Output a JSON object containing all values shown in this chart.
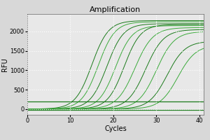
{
  "title": "Amplification",
  "xlabel": "Cycles",
  "ylabel": "RFU",
  "xlim": [
    0,
    41
  ],
  "ylim": [
    -150,
    2450
  ],
  "xticks": [
    0,
    10,
    20,
    30,
    40
  ],
  "yticks": [
    0,
    500,
    1000,
    1500,
    2000
  ],
  "background_color": "#d8d8d8",
  "plot_bg_color": "#e8e8e8",
  "grid_color": "#ffffff",
  "sigmoid_midpoints": [
    15.0,
    16.5,
    18.5,
    20.5,
    22.5,
    25.0,
    27.5,
    30.0,
    32.5,
    35.0
  ],
  "sigmoid_maxvals": [
    2280,
    2250,
    2200,
    2150,
    2180,
    2100,
    2050,
    2000,
    1750,
    1650
  ],
  "sigmoid_steepness": [
    0.52,
    0.52,
    0.52,
    0.52,
    0.52,
    0.48,
    0.48,
    0.48,
    0.48,
    0.48
  ],
  "flat_line_y": 200,
  "flat_line_y2": -20,
  "line_colors": [
    "#1a7a1a",
    "#3aaa3a",
    "#1a7a1a",
    "#3aaa3a",
    "#1a7a1a",
    "#3aaa3a",
    "#1a7a1a",
    "#3aaa3a",
    "#1a7a1a",
    "#3aaa3a"
  ],
  "flat_line_color": "#1a7a1a",
  "title_fontsize": 8,
  "axis_fontsize": 7,
  "tick_fontsize": 6
}
